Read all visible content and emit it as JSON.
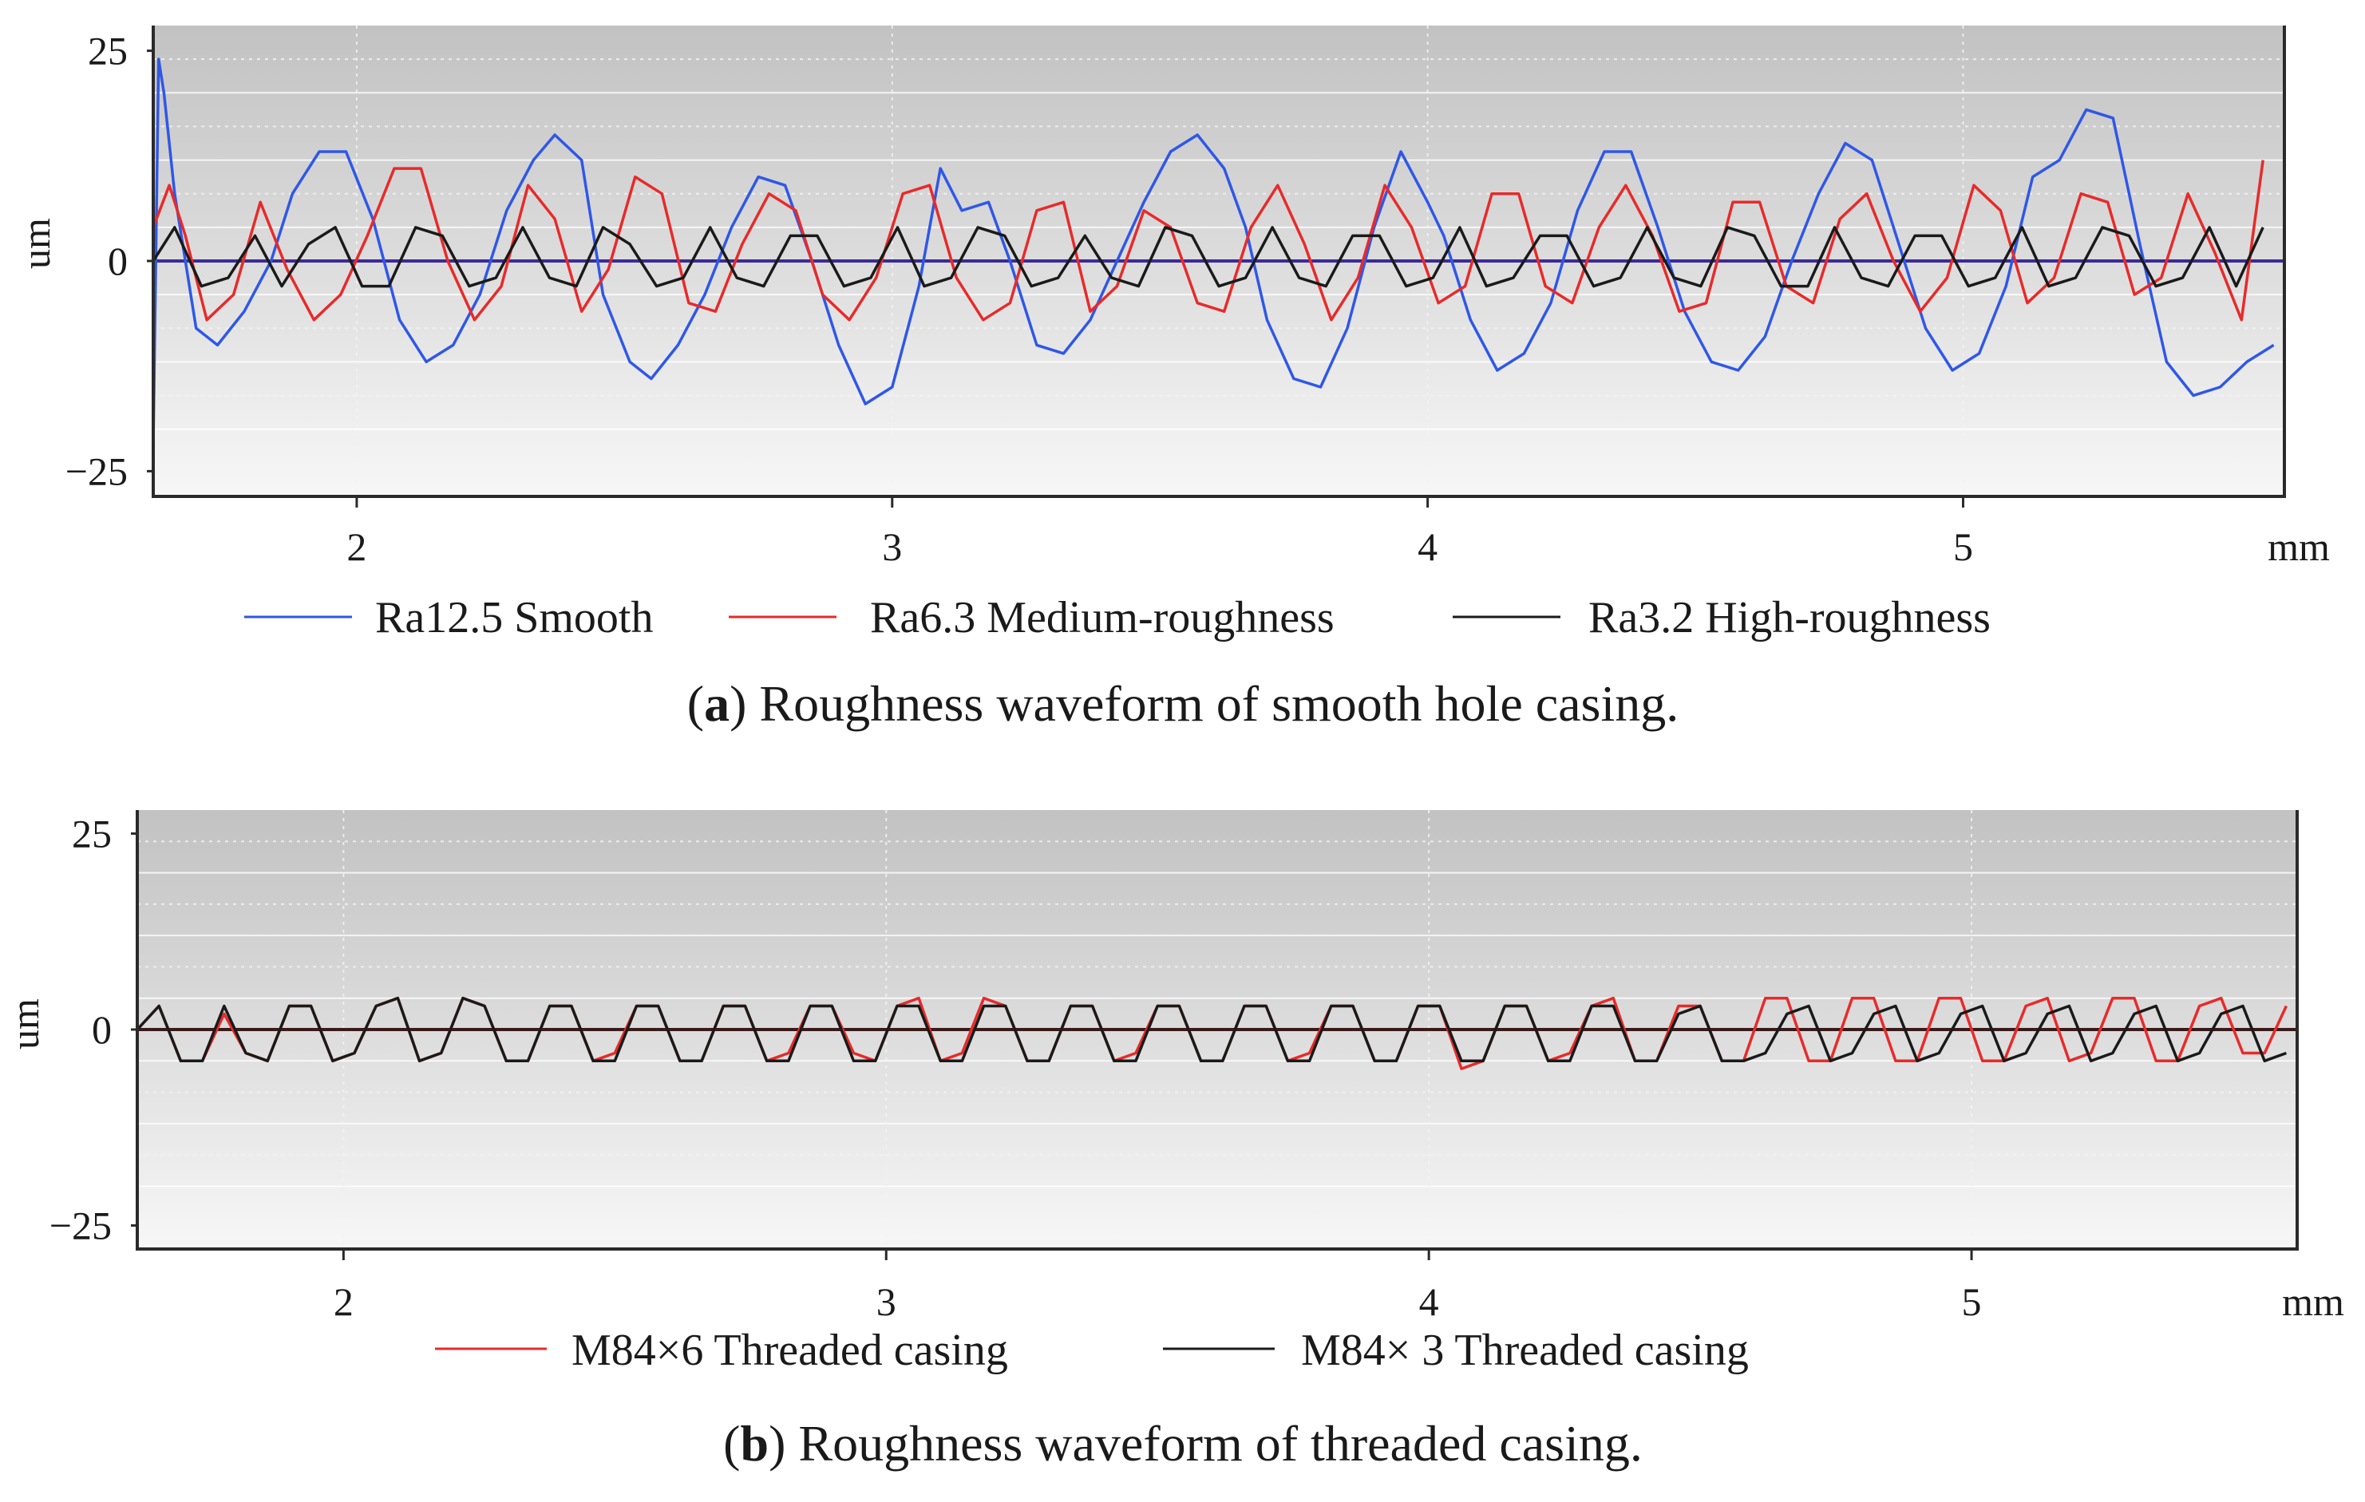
{
  "chart_data": [
    {
      "type": "line",
      "panel_label": "a",
      "caption": "Roughness waveform of smooth hole casing.",
      "ylabel": "um",
      "xlabel": "mm",
      "xlim": [
        1.62,
        5.6
      ],
      "ylim": [
        -28,
        28
      ],
      "xticks": [
        2,
        3,
        4,
        5
      ],
      "yticks": [
        25,
        0,
        -25
      ],
      "ytick_labels": [
        "25",
        "0",
        "−25"
      ],
      "zero_line_color": "#3a2a9a",
      "series": [
        {
          "name": "Ra12.5 Smooth",
          "color": "#2f57e8",
          "x": [
            1.62,
            1.63,
            1.64,
            1.66,
            1.7,
            1.74,
            1.79,
            1.84,
            1.88,
            1.93,
            1.98,
            2.03,
            2.08,
            2.13,
            2.18,
            2.23,
            2.28,
            2.33,
            2.37,
            2.42,
            2.46,
            2.51,
            2.55,
            2.6,
            2.65,
            2.7,
            2.75,
            2.8,
            2.85,
            2.9,
            2.95,
            3.0,
            3.05,
            3.09,
            3.13,
            3.18,
            3.22,
            3.27,
            3.32,
            3.37,
            3.42,
            3.47,
            3.52,
            3.57,
            3.62,
            3.66,
            3.7,
            3.75,
            3.8,
            3.85,
            3.9,
            3.95,
            4.0,
            4.03,
            4.08,
            4.13,
            4.18,
            4.23,
            4.28,
            4.33,
            4.38,
            4.43,
            4.48,
            4.53,
            4.58,
            4.63,
            4.68,
            4.73,
            4.78,
            4.83,
            4.88,
            4.93,
            4.98,
            5.03,
            5.08,
            5.13,
            5.18,
            5.23,
            5.28,
            5.33,
            5.38,
            5.43,
            5.48,
            5.53,
            5.58
          ],
          "values": [
            -22,
            24,
            20,
            8,
            -8,
            -10,
            -6,
            0,
            8,
            13,
            13,
            5,
            -7,
            -12,
            -10,
            -4,
            6,
            12,
            15,
            12,
            -4,
            -12,
            -14,
            -10,
            -4,
            4,
            10,
            9,
            0,
            -10,
            -17,
            -15,
            -3,
            11,
            6,
            7,
            0,
            -10,
            -11,
            -7,
            0,
            7,
            13,
            15,
            11,
            4,
            -7,
            -14,
            -15,
            -8,
            4,
            13,
            7,
            3,
            -7,
            -13,
            -11,
            -5,
            6,
            13,
            13,
            4,
            -6,
            -12,
            -13,
            -9,
            0,
            8,
            14,
            12,
            2,
            -8,
            -13,
            -11,
            -3,
            10,
            12,
            18,
            17,
            2,
            -12,
            -16,
            -15,
            -12,
            -10
          ]
        },
        {
          "name": "Ra6.3 Medium-roughness",
          "color": "#e82a2a",
          "x": [
            1.62,
            1.65,
            1.68,
            1.72,
            1.77,
            1.82,
            1.87,
            1.92,
            1.97,
            2.02,
            2.07,
            2.12,
            2.17,
            2.22,
            2.27,
            2.32,
            2.37,
            2.42,
            2.47,
            2.52,
            2.57,
            2.62,
            2.67,
            2.72,
            2.77,
            2.82,
            2.87,
            2.92,
            2.97,
            3.02,
            3.07,
            3.12,
            3.17,
            3.22,
            3.27,
            3.32,
            3.37,
            3.42,
            3.47,
            3.52,
            3.57,
            3.62,
            3.67,
            3.72,
            3.77,
            3.82,
            3.87,
            3.92,
            3.97,
            4.02,
            4.07,
            4.12,
            4.17,
            4.22,
            4.27,
            4.32,
            4.37,
            4.42,
            4.47,
            4.52,
            4.57,
            4.62,
            4.67,
            4.72,
            4.77,
            4.82,
            4.87,
            4.92,
            4.97,
            5.02,
            5.07,
            5.12,
            5.17,
            5.22,
            5.27,
            5.32,
            5.37,
            5.42,
            5.47,
            5.52,
            5.56
          ],
          "values": [
            4,
            9,
            3,
            -7,
            -4,
            7,
            -1,
            -7,
            -4,
            3,
            11,
            11,
            0,
            -7,
            -3,
            9,
            5,
            -6,
            -1,
            10,
            8,
            -5,
            -6,
            2,
            8,
            6,
            -4,
            -7,
            -2,
            8,
            9,
            -2,
            -7,
            -5,
            6,
            7,
            -6,
            -3,
            6,
            4,
            -5,
            -6,
            4,
            9,
            2,
            -7,
            -2,
            9,
            4,
            -5,
            -3,
            8,
            8,
            -3,
            -5,
            4,
            9,
            3,
            -6,
            -5,
            7,
            7,
            -3,
            -5,
            5,
            8,
            0,
            -6,
            -2,
            9,
            6,
            -5,
            -2,
            8,
            7,
            -4,
            -2,
            8,
            1,
            -7,
            12
          ]
        },
        {
          "name": "Ra3.2 High-roughness",
          "color": "#1a1a1a",
          "x": [
            1.62,
            1.66,
            1.71,
            1.76,
            1.81,
            1.86,
            1.91,
            1.96,
            2.01,
            2.06,
            2.11,
            2.16,
            2.21,
            2.26,
            2.31,
            2.36,
            2.41,
            2.46,
            2.51,
            2.56,
            2.61,
            2.66,
            2.71,
            2.76,
            2.81,
            2.86,
            2.91,
            2.96,
            3.01,
            3.06,
            3.11,
            3.16,
            3.21,
            3.26,
            3.31,
            3.36,
            3.41,
            3.46,
            3.51,
            3.56,
            3.61,
            3.66,
            3.71,
            3.76,
            3.81,
            3.86,
            3.91,
            3.96,
            4.01,
            4.06,
            4.11,
            4.16,
            4.21,
            4.26,
            4.31,
            4.36,
            4.41,
            4.46,
            4.51,
            4.56,
            4.61,
            4.66,
            4.71,
            4.76,
            4.81,
            4.86,
            4.91,
            4.96,
            5.01,
            5.06,
            5.11,
            5.16,
            5.21,
            5.26,
            5.31,
            5.36,
            5.41,
            5.46,
            5.51,
            5.56
          ],
          "values": [
            0,
            4,
            -3,
            -2,
            3,
            -3,
            2,
            4,
            -3,
            -3,
            4,
            3,
            -3,
            -2,
            4,
            -2,
            -3,
            4,
            2,
            -3,
            -2,
            4,
            -2,
            -3,
            3,
            3,
            -3,
            -2,
            4,
            -3,
            -2,
            4,
            3,
            -3,
            -2,
            3,
            -2,
            -3,
            4,
            3,
            -3,
            -2,
            4,
            -2,
            -3,
            3,
            3,
            -3,
            -2,
            4,
            -3,
            -2,
            3,
            3,
            -3,
            -2,
            4,
            -2,
            -3,
            4,
            3,
            -3,
            -3,
            4,
            -2,
            -3,
            3,
            3,
            -3,
            -2,
            4,
            -3,
            -2,
            4,
            3,
            -3,
            -2,
            4,
            -3,
            4
          ]
        }
      ],
      "legend": [
        "Ra12.5 Smooth",
        "Ra6.3 Medium-roughness",
        "Ra3.2 High-roughness"
      ]
    },
    {
      "type": "line",
      "panel_label": "b",
      "caption": "Roughness waveform of threaded casing.",
      "ylabel": "um",
      "xlabel": "mm",
      "xlim": [
        1.62,
        5.6
      ],
      "ylim": [
        -28,
        28
      ],
      "xticks": [
        2,
        3,
        4,
        5
      ],
      "yticks": [
        25,
        0,
        -25
      ],
      "ytick_labels": [
        "25",
        "0",
        "−25"
      ],
      "zero_line_color": "#3a1a1a",
      "series": [
        {
          "name": "M84×6 Threaded casing",
          "color": "#e82a2a",
          "x": [
            1.62,
            1.66,
            1.7,
            1.74,
            1.78,
            1.82,
            1.86,
            1.9,
            1.94,
            1.98,
            2.02,
            2.06,
            2.1,
            2.14,
            2.18,
            2.22,
            2.26,
            2.3,
            2.34,
            2.38,
            2.42,
            2.46,
            2.5,
            2.54,
            2.58,
            2.62,
            2.66,
            2.7,
            2.74,
            2.78,
            2.82,
            2.86,
            2.9,
            2.94,
            2.98,
            3.02,
            3.06,
            3.1,
            3.14,
            3.18,
            3.22,
            3.26,
            3.3,
            3.34,
            3.38,
            3.42,
            3.46,
            3.5,
            3.54,
            3.58,
            3.62,
            3.66,
            3.7,
            3.74,
            3.78,
            3.82,
            3.86,
            3.9,
            3.94,
            3.98,
            4.02,
            4.06,
            4.1,
            4.14,
            4.18,
            4.22,
            4.26,
            4.3,
            4.34,
            4.38,
            4.42,
            4.46,
            4.5,
            4.54,
            4.58,
            4.62,
            4.66,
            4.7,
            4.74,
            4.78,
            4.82,
            4.86,
            4.9,
            4.94,
            4.98,
            5.02,
            5.06,
            5.1,
            5.14,
            5.18,
            5.22,
            5.26,
            5.3,
            5.34,
            5.38,
            5.42,
            5.46,
            5.5,
            5.54,
            5.58
          ],
          "values": [
            0,
            3,
            -4,
            -4,
            2,
            -3,
            -4,
            3,
            3,
            -4,
            -3,
            3,
            4,
            -4,
            -3,
            4,
            3,
            -4,
            -4,
            3,
            3,
            -4,
            -3,
            3,
            3,
            -4,
            -4,
            3,
            3,
            -4,
            -3,
            3,
            3,
            -3,
            -4,
            3,
            4,
            -4,
            -3,
            4,
            3,
            -4,
            -4,
            3,
            3,
            -4,
            -3,
            3,
            3,
            -4,
            -4,
            3,
            3,
            -4,
            -3,
            3,
            3,
            -4,
            -4,
            3,
            3,
            -5,
            -4,
            3,
            3,
            -4,
            -3,
            3,
            4,
            -4,
            -4,
            3,
            3,
            -4,
            -4,
            4,
            4,
            -4,
            -4,
            4,
            4,
            -4,
            -4,
            4,
            4,
            -4,
            -4,
            3,
            4,
            -4,
            -3,
            4,
            4,
            -4,
            -4,
            3,
            4,
            -3,
            -3,
            3
          ]
        },
        {
          "name": "M84× 3 Threaded casing",
          "color": "#1a1a1a",
          "x": [
            1.62,
            1.66,
            1.7,
            1.74,
            1.78,
            1.82,
            1.86,
            1.9,
            1.94,
            1.98,
            2.02,
            2.06,
            2.1,
            2.14,
            2.18,
            2.22,
            2.26,
            2.3,
            2.34,
            2.38,
            2.42,
            2.46,
            2.5,
            2.54,
            2.58,
            2.62,
            2.66,
            2.7,
            2.74,
            2.78,
            2.82,
            2.86,
            2.9,
            2.94,
            2.98,
            3.02,
            3.06,
            3.1,
            3.14,
            3.18,
            3.22,
            3.26,
            3.3,
            3.34,
            3.38,
            3.42,
            3.46,
            3.5,
            3.54,
            3.58,
            3.62,
            3.66,
            3.7,
            3.74,
            3.78,
            3.82,
            3.86,
            3.9,
            3.94,
            3.98,
            4.02,
            4.06,
            4.1,
            4.14,
            4.18,
            4.22,
            4.26,
            4.3,
            4.34,
            4.38,
            4.42,
            4.46,
            4.5,
            4.54,
            4.58,
            4.62,
            4.66,
            4.7,
            4.74,
            4.78,
            4.82,
            4.86,
            4.9,
            4.94,
            4.98,
            5.02,
            5.06,
            5.1,
            5.14,
            5.18,
            5.22,
            5.26,
            5.3,
            5.34,
            5.38,
            5.42,
            5.46,
            5.5,
            5.54,
            5.58
          ],
          "values": [
            0,
            3,
            -4,
            -4,
            3,
            -3,
            -4,
            3,
            3,
            -4,
            -3,
            3,
            4,
            -4,
            -3,
            4,
            3,
            -4,
            -4,
            3,
            3,
            -4,
            -4,
            3,
            3,
            -4,
            -4,
            3,
            3,
            -4,
            -4,
            3,
            3,
            -4,
            -4,
            3,
            3,
            -4,
            -4,
            3,
            3,
            -4,
            -4,
            3,
            3,
            -4,
            -4,
            3,
            3,
            -4,
            -4,
            3,
            3,
            -4,
            -4,
            3,
            3,
            -4,
            -4,
            3,
            3,
            -4,
            -4,
            3,
            3,
            -4,
            -4,
            3,
            3,
            -4,
            -4,
            2,
            3,
            -4,
            -4,
            -3,
            2,
            3,
            -4,
            -3,
            2,
            3,
            -4,
            -3,
            2,
            3,
            -4,
            -3,
            2,
            3,
            -4,
            -3,
            2,
            3,
            -4,
            -3,
            2,
            3,
            -4,
            -3
          ]
        }
      ],
      "legend": [
        "M84×6 Threaded casing",
        "M84× 3 Threaded casing"
      ]
    }
  ]
}
